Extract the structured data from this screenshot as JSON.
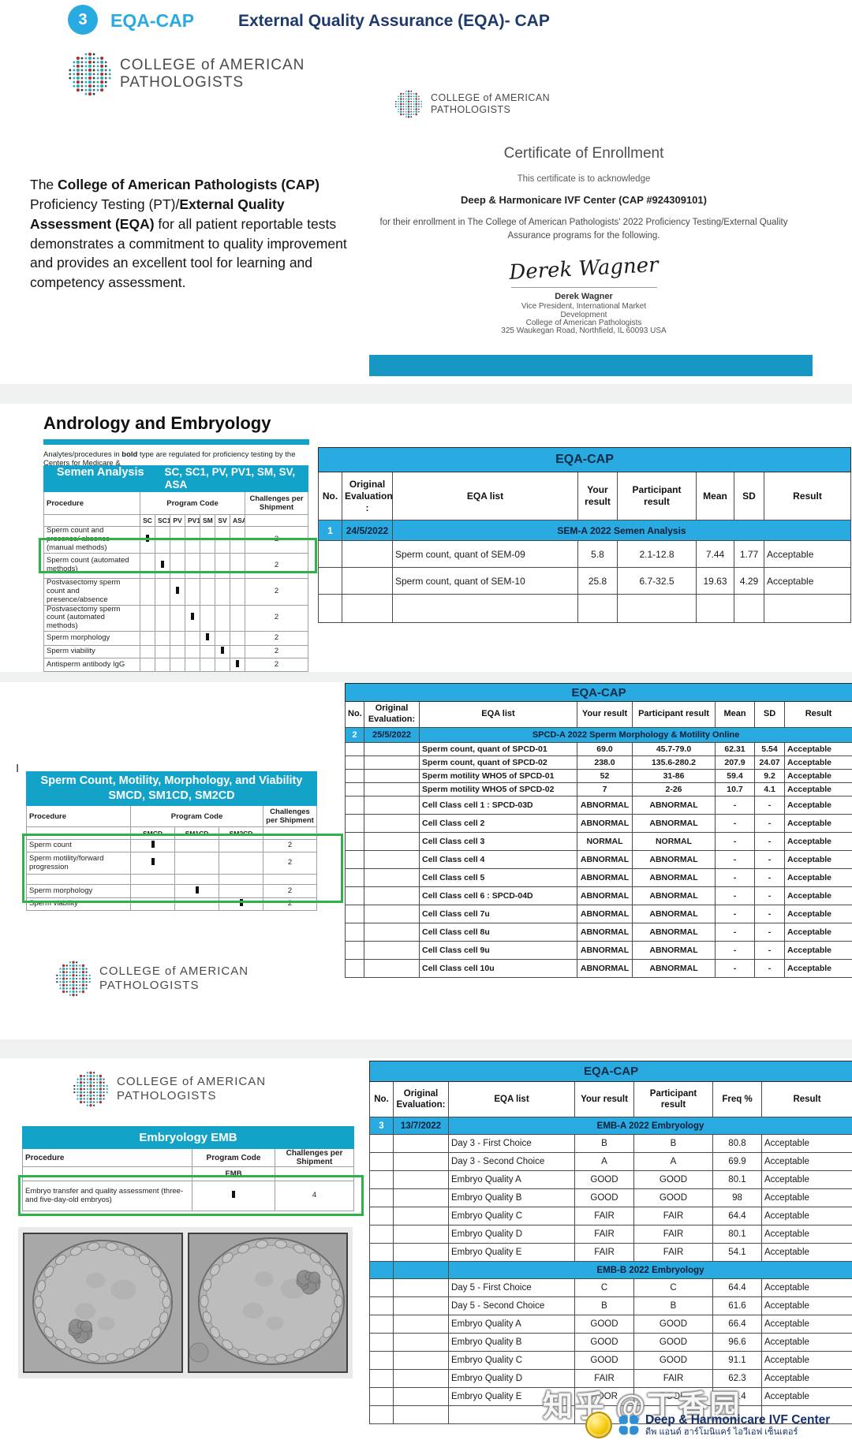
{
  "colors": {
    "accent_cyan": "#29abe2",
    "teal": "#13a3c9",
    "highlight_green": "#2eb34a",
    "navy": "#1d3a6b"
  },
  "header": {
    "step_number": "3",
    "badge": "EQA-CAP",
    "title": "External Quality Assurance (EQA)- CAP"
  },
  "cap_logo": {
    "line1": "COLLEGE of AMERICAN",
    "line2": "PATHOLOGISTS"
  },
  "intro": {
    "t1": "The ",
    "b1": "College of American Pathologists (CAP)",
    "t2": " Proficiency Testing (PT)/",
    "b2": "External Quality Assessment (EQA)",
    "t3": " for all patient reportable tests demonstrates a commitment to quality improvement and provides an excellent tool for learning and competency assessment."
  },
  "certificate": {
    "title": "Certificate of Enrollment",
    "subtitle": "This certificate is to acknowledge",
    "organization": "Deep & Harmonicare IVF Center (CAP #924309101)",
    "body": "for their enrollment in The College of American Pathologists' 2022 Proficiency Testing/External Quality Assurance programs for the following.",
    "signature": "Derek Wagner",
    "signer_name": "Derek Wagner",
    "signer_title1": "Vice President, International Market",
    "signer_title2": "Development",
    "signer_org": "College of American Pathologists",
    "signer_address": "325 Waukegan Road, Northfield, IL  60093 USA"
  },
  "section2": {
    "heading": "Andrology and Embryology",
    "note_pre": "Analytes/procedures in ",
    "note_bold": "bold",
    "note_post": " type are regulated for proficiency testing by the Centers for Medicare &"
  },
  "cursor_artifact": "I",
  "semen_table": {
    "title": "Semen Analysis",
    "codes_label": "SC, SC1, PV, PV1, SM, SV, ASA",
    "col_procedure": "Procedure",
    "col_program": "Program Code",
    "col_challenges": "Challenges per Shipment",
    "codes": [
      "SC",
      "SC1",
      "PV",
      "PV1",
      "SM",
      "SV",
      "ASA"
    ],
    "rows": [
      {
        "procedure": "Sperm count and presence/ absence (manual methods)",
        "mark": 0,
        "challenges": "2"
      },
      {
        "procedure": "Sperm count (automated methods)",
        "mark": 1,
        "challenges": "2",
        "highlight": true
      },
      {
        "procedure": "Postvasectomy sperm count and presence/absence",
        "mark": 2,
        "challenges": "2"
      },
      {
        "procedure": "Postvasectomy sperm count (automated methods)",
        "mark": 3,
        "challenges": "2"
      },
      {
        "procedure": "Sperm morphology",
        "mark": 4,
        "challenges": "2"
      },
      {
        "procedure": "Sperm viability",
        "mark": 5,
        "challenges": "2"
      },
      {
        "procedure": "Antisperm antibody IgG",
        "mark": 6,
        "challenges": "2"
      }
    ]
  },
  "smcd_table": {
    "title_line1": "Sperm Count, Motility, Morphology, and Viability",
    "title_line2": "SMCD, SM1CD, SM2CD",
    "col_procedure": "Procedure",
    "col_program": "Program Code",
    "col_challenges": "Challenges per Shipment",
    "codes": [
      "SMCD",
      "SM1CD",
      "SM2CD"
    ],
    "rows": [
      {
        "procedure": "Sperm count",
        "mark": 0,
        "challenges": "2",
        "highlight": true
      },
      {
        "procedure": "Sperm motility/forward progression",
        "mark": 0,
        "challenges": "2",
        "highlight": true
      },
      {
        "procedure": "",
        "mark": -1,
        "challenges": "",
        "highlight": true
      },
      {
        "procedure": "Sperm morphology",
        "mark": 1,
        "challenges": "2",
        "highlight": true
      },
      {
        "procedure": "Sperm viability",
        "mark": 2,
        "challenges": "2"
      }
    ]
  },
  "emb_table": {
    "title": "Embryology  EMB",
    "col_procedure": "Procedure",
    "col_program": "Program Code",
    "col_challenges": "Challenges per Shipment",
    "codes": [
      "EMB"
    ],
    "rows": [
      {
        "procedure": "Embryo transfer and quality assessment (three- and five-day-old embryos)",
        "mark": 0,
        "challenges": "4",
        "highlight": true
      }
    ]
  },
  "eqa1": {
    "title": "EQA-CAP",
    "columns": [
      "No.",
      "Original Evaluation :",
      "EQA list",
      "Your result",
      "Participant result",
      "Mean",
      "SD",
      "Result"
    ],
    "groups": [
      {
        "no": "1",
        "date": "24/5/2022",
        "label": "SEM-A 2022 Semen Analysis",
        "rows": [
          [
            "Sperm count, quant of SEM-09",
            "5.8",
            "2.1-12.8",
            "7.44",
            "1.77",
            "Acceptable"
          ],
          [
            "Sperm count, quant of SEM-10",
            "25.8",
            "6.7-32.5",
            "19.63",
            "4.29",
            "Acceptable"
          ]
        ]
      }
    ],
    "empty_row": true
  },
  "eqa2": {
    "title": "EQA-CAP",
    "columns": [
      "No.",
      "Original Evaluation:",
      "EQA list",
      "Your result",
      "Participant result",
      "Mean",
      "SD",
      "Result"
    ],
    "groups": [
      {
        "no": "2",
        "date": "25/5/2022",
        "label": "SPCD-A 2022 Sperm Morphology & Motility Online",
        "rows": [
          [
            "Sperm count, quant of SPCD-01",
            "69.0",
            "45.7-79.0",
            "62.31",
            "5.54",
            "Acceptable"
          ],
          [
            "Sperm count, quant of SPCD-02",
            "238.0",
            "135.6-280.2",
            "207.9",
            "24.07",
            "Acceptable"
          ],
          [
            "Sperm motility WHO5 of SPCD-01",
            "52",
            "31-86",
            "59.4",
            "9.2",
            "Acceptable"
          ],
          [
            "Sperm motility WHO5 of SPCD-02",
            "7",
            "2-26",
            "10.7",
            "4.1",
            "Acceptable"
          ],
          [
            "Cell Class cell 1 : SPCD-03D",
            "ABNORMAL",
            "ABNORMAL",
            "-",
            "-",
            "Acceptable"
          ],
          [
            "Cell Class cell 2",
            "ABNORMAL",
            "ABNORMAL",
            "-",
            "-",
            "Acceptable"
          ],
          [
            "Cell Class cell 3",
            "NORMAL",
            "NORMAL",
            "-",
            "-",
            "Acceptable"
          ],
          [
            "Cell Class cell 4",
            "ABNORMAL",
            "ABNORMAL",
            "-",
            "-",
            "Acceptable"
          ],
          [
            "Cell Class cell 5",
            "ABNORMAL",
            "ABNORMAL",
            "-",
            "-",
            "Acceptable"
          ],
          [
            "Cell Class cell 6 : SPCD-04D",
            "ABNORMAL",
            "ABNORMAL",
            "-",
            "-",
            "Acceptable"
          ],
          [
            "Cell Class cell 7u",
            "ABNORMAL",
            "ABNORMAL",
            "-",
            "-",
            "Acceptable"
          ],
          [
            "Cell Class cell 8u",
            "ABNORMAL",
            "ABNORMAL",
            "-",
            "-",
            "Acceptable"
          ],
          [
            "Cell Class cell 9u",
            "ABNORMAL",
            "ABNORMAL",
            "-",
            "-",
            "Acceptable"
          ],
          [
            "Cell Class cell 10u",
            "ABNORMAL",
            "ABNORMAL",
            "-",
            "-",
            "Acceptable"
          ]
        ]
      }
    ],
    "empty_row": false
  },
  "eqa3": {
    "title": "EQA-CAP",
    "columns": [
      "No.",
      "Original Evaluation:",
      "EQA list",
      "Your result",
      "Participant result",
      "Freq %",
      "Result"
    ],
    "groups": [
      {
        "no": "3",
        "date": "13/7/2022",
        "label": "EMB-A 2022 Embryology",
        "rows": [
          [
            "Day 3 - First Choice",
            "B",
            "B",
            "80.8",
            "Acceptable"
          ],
          [
            "Day 3 - Second Choice",
            "A",
            "A",
            "69.9",
            "Acceptable"
          ],
          [
            "Embryo Quality A",
            "GOOD",
            "GOOD",
            "80.1",
            "Acceptable"
          ],
          [
            "Embryo Quality B",
            "GOOD",
            "GOOD",
            "98",
            "Acceptable"
          ],
          [
            "Embryo Quality C",
            "FAIR",
            "FAIR",
            "64.4",
            "Acceptable"
          ],
          [
            "Embryo Quality D",
            "FAIR",
            "FAIR",
            "80.1",
            "Acceptable"
          ],
          [
            "Embryo Quality E",
            "FAIR",
            "FAIR",
            "54.1",
            "Acceptable"
          ]
        ]
      },
      {
        "no": "",
        "date": "",
        "label": "EMB-B 2022 Embryology",
        "rows": [
          [
            "Day 5 - First Choice",
            "C",
            "C",
            "64.4",
            "Acceptable"
          ],
          [
            "Day 5 - Second Choice",
            "B",
            "B",
            "61.6",
            "Acceptable"
          ],
          [
            "Embryo Quality A",
            "GOOD",
            "GOOD",
            "66.4",
            "Acceptable"
          ],
          [
            "Embryo Quality B",
            "GOOD",
            "GOOD",
            "96.6",
            "Acceptable"
          ],
          [
            "Embryo Quality C",
            "GOOD",
            "GOOD",
            "91.1",
            "Acceptable"
          ],
          [
            "Embryo Quality D",
            "FAIR",
            "FAIR",
            "62.3",
            "Acceptable"
          ],
          [
            "Embryo Quality E",
            "POOR",
            "POOR",
            "77.4",
            "Acceptable"
          ]
        ]
      }
    ],
    "empty_row": true
  },
  "footer": {
    "watermark": "知乎 @丁香园",
    "brand_en": "Deep & Harmonicare  IVF  Center",
    "brand_th": "ดีพ แอนด์ ฮาร์โมนิแคร์ ไอวีเอฟ เซ็นเตอร์"
  }
}
